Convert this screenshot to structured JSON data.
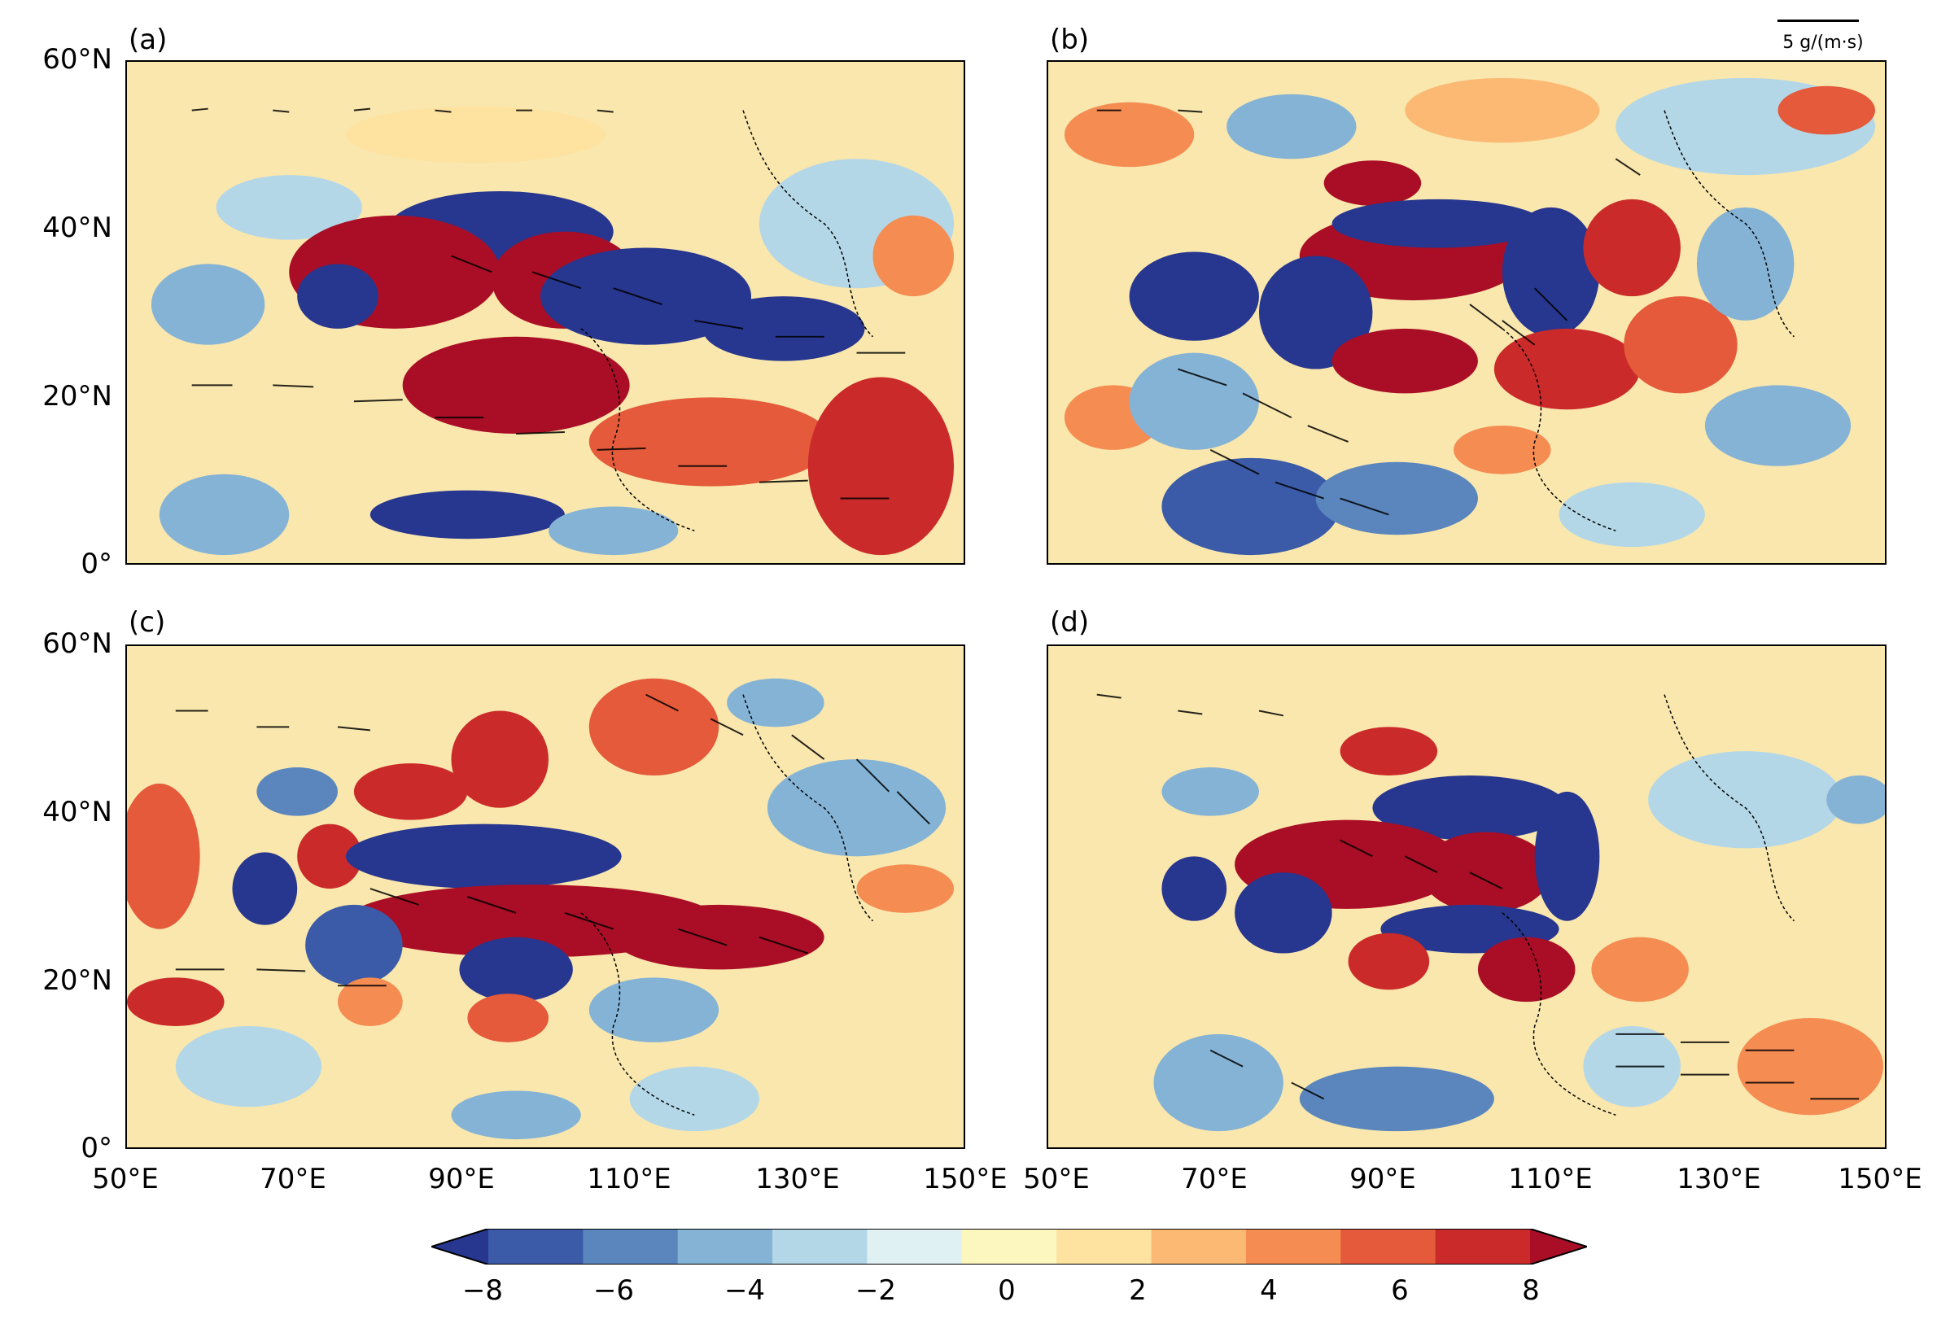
{
  "panels": [
    {
      "id": "a",
      "label": "(a)"
    },
    {
      "id": "b",
      "label": "(b)"
    },
    {
      "id": "c",
      "label": "(c)"
    },
    {
      "id": "d",
      "label": "(d)"
    }
  ],
  "y_ticks": [
    "60°N",
    "40°N",
    "20°N",
    "0°"
  ],
  "x_ticks_left": [
    "50°E",
    "70°E",
    "90°E",
    "110°E",
    "130°E",
    "150°E"
  ],
  "x_ticks_right": [
    "50°E",
    "70°E",
    "90°E",
    "110°E",
    "130°E",
    "150°E"
  ],
  "reference_vector": {
    "label": "5 g/(m·s)"
  },
  "colorbar": {
    "ticks": [
      "−8",
      "−6",
      "−4",
      "−2",
      "0",
      "2",
      "4",
      "6",
      "8"
    ],
    "colors": [
      "#27368f",
      "#3b5ba8",
      "#5a86bd",
      "#85b3d6",
      "#b4d7e8",
      "#e0f1f4",
      "#fcf6bf",
      "#fde2a0",
      "#fbb974",
      "#f58c52",
      "#e45a3a",
      "#cb2a2a",
      "#aa0e26"
    ],
    "extend": "both"
  }
}
